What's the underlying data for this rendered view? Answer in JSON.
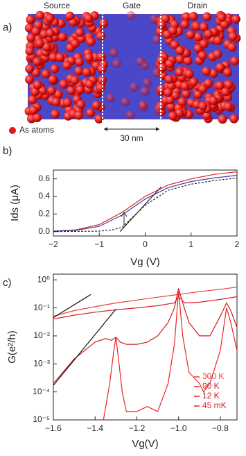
{
  "figure_a": {
    "label": "a)",
    "regions": [
      "Source",
      "Gate",
      "Drain"
    ],
    "legend": "As atoms",
    "scale": "30 nm"
  },
  "chart_data": [
    {
      "type": "line",
      "panel_label": "b)",
      "x_label": "Vg (V)",
      "y_label": "Ids (μA)",
      "xlim": [
        -2,
        2
      ],
      "ylim": [
        -0.05,
        0.7
      ],
      "xticks": [
        {
          "value": -2,
          "label": "−2"
        },
        {
          "value": -1,
          "label": "−1"
        },
        0,
        1,
        2
      ],
      "yticks": [
        {
          "value": 0,
          "label": "0.0"
        },
        {
          "value": 0.2,
          "label": "0.2"
        },
        {
          "value": 0.4,
          "label": "0.4"
        },
        {
          "value": 0.6,
          "label": "0.6"
        }
      ],
      "log_y": false,
      "series": [
        {
          "color": "#e0262b",
          "style": "solid",
          "x": [
            -2,
            -1.5,
            -1,
            -0.5,
            0,
            0.5,
            1,
            1.5,
            2
          ],
          "values": [
            0.005,
            0.02,
            0.08,
            0.22,
            0.4,
            0.53,
            0.6,
            0.65,
            0.68
          ]
        },
        {
          "color": "#3a3fa8",
          "style": "solid",
          "x": [
            -2,
            -1.5,
            -1,
            -0.5,
            0,
            0.5,
            1,
            1.5,
            2
          ],
          "values": [
            0.005,
            0.015,
            0.06,
            0.19,
            0.37,
            0.5,
            0.57,
            0.61,
            0.64
          ]
        },
        {
          "color": "#222222",
          "style": "dashed",
          "x": [
            -2,
            -1,
            -0.7,
            -0.5,
            0,
            0.5,
            1,
            1.5,
            2
          ],
          "values": [
            0,
            0.005,
            0.02,
            0.05,
            0.3,
            0.47,
            0.54,
            0.58,
            0.61
          ]
        },
        {
          "color": "#222222",
          "style": "solid",
          "x": [
            -0.55,
            0.35
          ],
          "values": [
            0,
            0.51
          ]
        }
      ]
    },
    {
      "type": "line",
      "panel_label": "c)",
      "x_label": "Vg(V)",
      "y_label": "G(e²/h)",
      "xlim": [
        -1.6,
        -0.72
      ],
      "ylim": [
        1e-05,
        1.6
      ],
      "log_y": true,
      "xticks": [
        {
          "value": -1.6,
          "label": "−1.6"
        },
        {
          "value": -1.4,
          "label": "−1.4"
        },
        {
          "value": -1.2,
          "label": "−1.2"
        },
        {
          "value": -1,
          "label": "−1.0"
        },
        {
          "value": -0.8,
          "label": "−0.8"
        }
      ],
      "yticks": [
        {
          "value": 1,
          "label": "10⁰"
        },
        {
          "value": 0.1,
          "label": "10⁻¹"
        },
        {
          "value": 0.01,
          "label": "10⁻²"
        },
        {
          "value": 0.001,
          "label": "10⁻³"
        },
        {
          "value": 0.0001,
          "label": "10⁻⁴"
        },
        {
          "value": 1e-05,
          "label": "10⁻⁵"
        }
      ],
      "legend": "lower right",
      "series": [
        {
          "name": "300 K",
          "color": "#e8413a",
          "style": "solid",
          "x": [
            -1.6,
            -1.5,
            -1.4,
            -1.3,
            -1.2,
            -1.1,
            -1.0,
            -0.9,
            -0.8,
            -0.72
          ],
          "values": [
            0.05,
            0.08,
            0.11,
            0.15,
            0.19,
            0.24,
            0.3,
            0.38,
            0.46,
            0.55
          ]
        },
        {
          "name": "90 K",
          "color": "#d8202a",
          "style": "solid",
          "x": [
            -1.6,
            -1.5,
            -1.4,
            -1.3,
            -1.2,
            -1.1,
            -1.02,
            -1.0,
            -0.97,
            -0.9,
            -0.8,
            -0.72
          ],
          "values": [
            0.04,
            0.055,
            0.07,
            0.085,
            0.1,
            0.12,
            0.15,
            0.25,
            0.15,
            0.16,
            0.2,
            0.25
          ]
        },
        {
          "name": "12 K",
          "color": "#c81e1e",
          "style": "solid",
          "x": [
            -1.6,
            -1.5,
            -1.4,
            -1.35,
            -1.32,
            -1.3,
            -1.28,
            -1.25,
            -1.2,
            -1.15,
            -1.1,
            -1.05,
            -1.02,
            -1.0,
            -0.98,
            -0.95,
            -0.9,
            -0.85,
            -0.8,
            -0.77,
            -0.75,
            -0.72
          ],
          "values": [
            0.0002,
            0.0015,
            0.006,
            0.008,
            0.007,
            0.009,
            0.006,
            0.005,
            0.005,
            0.006,
            0.01,
            0.03,
            0.1,
            0.5,
            0.15,
            0.03,
            0.01,
            0.01,
            0.05,
            0.15,
            0.08,
            0.02
          ]
        },
        {
          "name": "45 mK",
          "color": "#ee2222",
          "style": "solid",
          "x": [
            -1.36,
            -1.33,
            -1.31,
            -1.3,
            -1.29,
            -1.27,
            -1.25,
            -1.2,
            -1.15,
            -1.1,
            -1.05,
            -1.02,
            -1.0,
            -0.98,
            -0.95,
            -0.9,
            -0.88,
            -0.85,
            -0.8,
            -0.77,
            -0.75,
            -0.72
          ],
          "values": [
            1e-05,
            0.0002,
            0.003,
            0.009,
            0.002,
            0.0001,
            2e-05,
            2e-05,
            3e-05,
            2e-05,
            0.0002,
            0.005,
            0.4,
            0.01,
            0.0005,
            0.0002,
            0.0001,
            0.0002,
            0.003,
            0.1,
            0.03,
            0.003
          ]
        },
        {
          "color": "#111111",
          "style": "solid",
          "x": [
            -1.6,
            -1.42
          ],
          "values": [
            0.045,
            0.3
          ]
        },
        {
          "color": "#111111",
          "style": "solid",
          "x": [
            -1.6,
            -1.3
          ],
          "values": [
            0.00017,
            0.09
          ]
        }
      ]
    }
  ]
}
